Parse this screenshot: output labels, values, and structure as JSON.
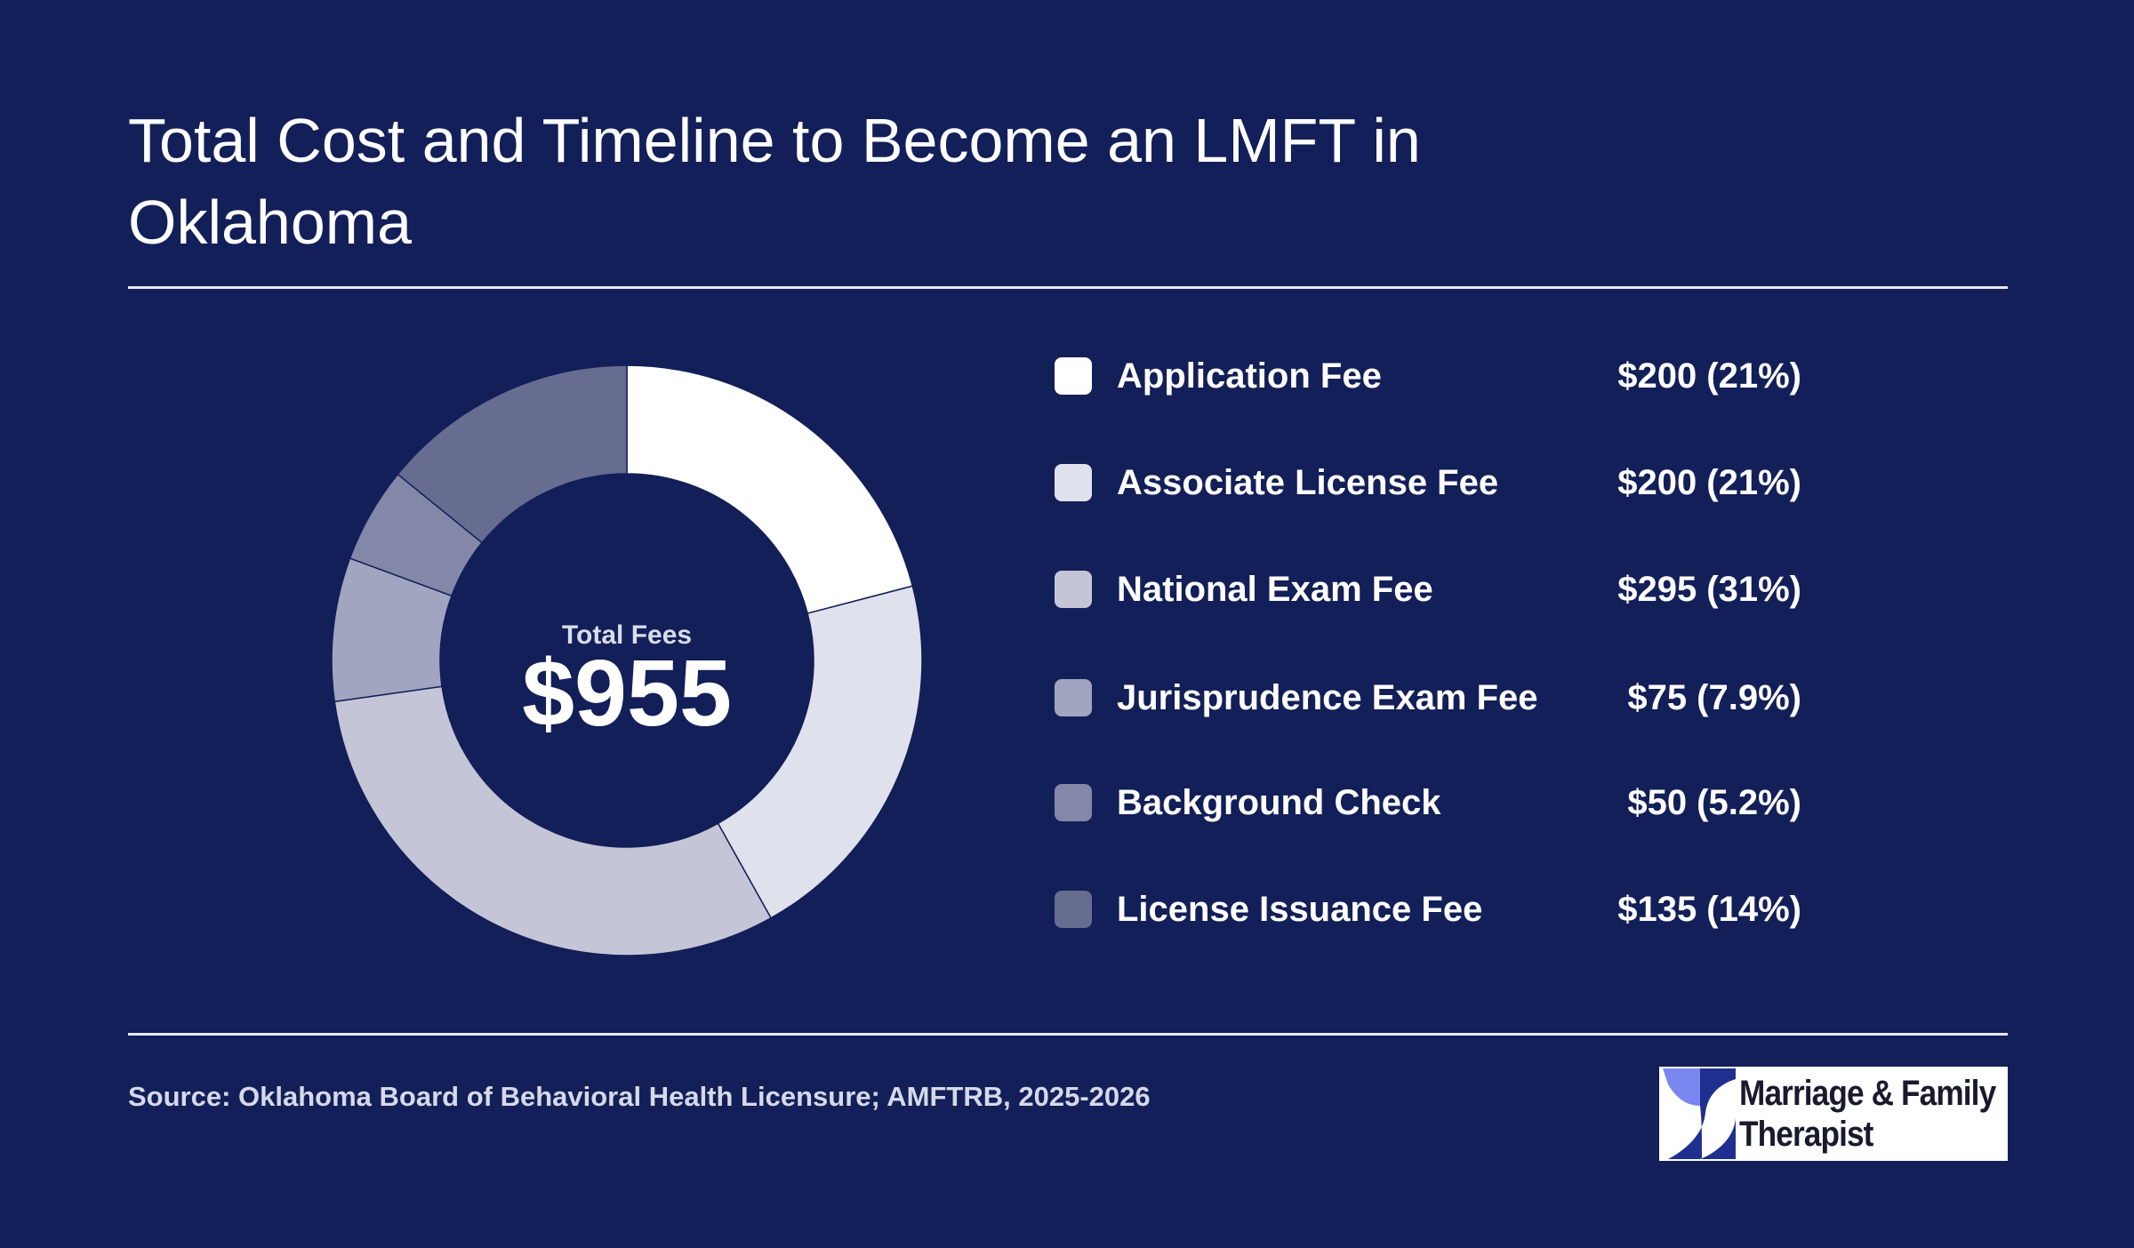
{
  "header": {
    "title": "Total Cost and Timeline to Become an LMFT in Oklahoma"
  },
  "center": {
    "caption": "Total Fees",
    "total": "$955"
  },
  "legend": [
    {
      "label": "Application Fee",
      "value_text": "$200 (21%)",
      "color": "#ffffff"
    },
    {
      "label": "Associate License Fee",
      "value_text": "$200 (21%)",
      "color": "#dfe1ec"
    },
    {
      "label": "National Exam Fee",
      "value_text": "$295 (31%)",
      "color": "#c4c6d7"
    },
    {
      "label": "Jurisprudence Exam Fee",
      "value_text": "$75 (7.9%)",
      "color": "#a1a5c0"
    },
    {
      "label": "Background Check",
      "value_text": "$50 (5.2%)",
      "color": "#8388a8"
    },
    {
      "label": "License Issuance Fee",
      "value_text": "$135 (14%)",
      "color": "#666d91"
    }
  ],
  "chart_data": {
    "type": "pie",
    "donut": true,
    "categories": [
      "Application Fee",
      "Associate License Fee",
      "National Exam Fee",
      "Jurisprudence Exam Fee",
      "Background Check",
      "License Issuance Fee"
    ],
    "values": [
      200,
      200,
      295,
      75,
      50,
      135
    ],
    "total": 955,
    "colors": [
      "#ffffff",
      "#dfe1ec",
      "#c4c6d7",
      "#a1a5c0",
      "#8388a8",
      "#666d91"
    ],
    "legend_position": "right"
  },
  "footer": {
    "source": "Source: Oklahoma Board of Behavioral Health Licensure; AMFTRB, 2025-2026"
  },
  "logo": {
    "line1": "Marriage & Family",
    "line2": "Therapist"
  },
  "colors": {
    "background": "#131f58",
    "logo_mark_light": "#7b87f0",
    "logo_mark_dark": "#1f2f8f"
  }
}
